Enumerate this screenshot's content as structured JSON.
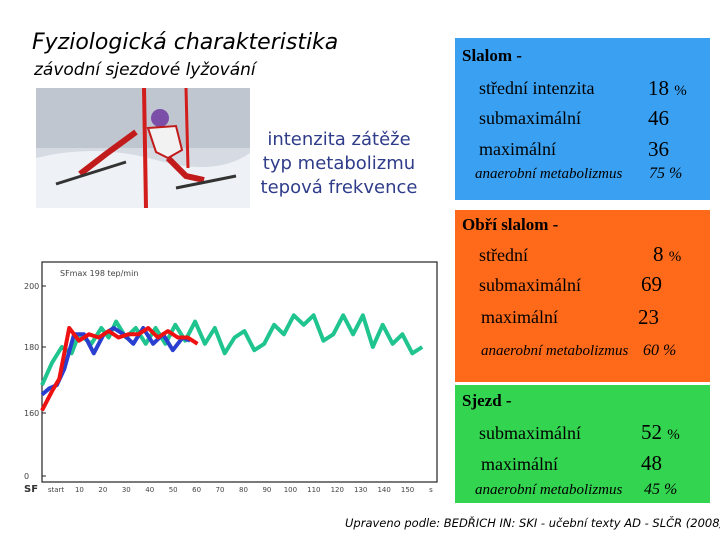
{
  "title": "Fyziologická charakteristika",
  "subtitle": "závodní sjezdové lyžování",
  "intensity_lines": [
    "intenzita zátěže",
    "typ metabolizmu",
    "tepová frekvence"
  ],
  "slalom": {
    "heading": "Slalom -",
    "rows": [
      {
        "label": "střední intenzita",
        "value": "18",
        "unit": "%"
      },
      {
        "label": "submaximální",
        "value": "46",
        "unit": ""
      },
      {
        "label": "maximální",
        "value": "36",
        "unit": ""
      }
    ],
    "anaerobic_label": "anaerobní metabolizmus",
    "anaerobic_value": "75 %"
  },
  "giant_slalom": {
    "heading": "Obří slalom -",
    "rows": [
      {
        "label": "střední",
        "value": "8",
        "unit": "%"
      },
      {
        "label": "submaximální",
        "value": "69",
        "unit": ""
      },
      {
        "label": "maximální",
        "value": "23",
        "unit": ""
      }
    ],
    "anaerobic_label": "anaerobní metabolizmus",
    "anaerobic_value": "60 %"
  },
  "downhill": {
    "heading": "Sjezd -",
    "rows": [
      {
        "label": "submaximální",
        "value": "52",
        "unit": "%"
      },
      {
        "label": "maximální",
        "value": "48",
        "unit": ""
      }
    ],
    "anaerobic_label": "anaerobní metabolizmus",
    "anaerobic_value": "45 %"
  },
  "caption": "Upraveno podle: BEDŘICH IN: SKI - učební texty AD - SLČR (2008)",
  "colors": {
    "slalom_box": "#3aa0f2",
    "giant_box": "#ff6a1a",
    "downhill_box": "#33d44f",
    "intensity_text": "#2f3c8a"
  },
  "chart_data": {
    "type": "line",
    "legend_text": "SFmax 198 tep/min",
    "ylabel": "SF",
    "yticks": [
      "200",
      "180",
      "160",
      "0"
    ],
    "xticks": [
      "start",
      "10",
      "20",
      "30",
      "40",
      "50",
      "60",
      "70",
      "80",
      "90",
      "100",
      "110",
      "120",
      "130",
      "140",
      "150",
      "s"
    ],
    "series": [
      {
        "color": "#1fc48f",
        "x": [
          0,
          4,
          8,
          12,
          15,
          20,
          24,
          27,
          30,
          34,
          38,
          42,
          46,
          50,
          54,
          58,
          62,
          66,
          70,
          74,
          78,
          82,
          86,
          90,
          94,
          98,
          102,
          106,
          110,
          114,
          118,
          122,
          126,
          130,
          134,
          138,
          142,
          146,
          150,
          154
        ],
        "y": [
          168,
          175,
          180,
          178,
          184,
          181,
          186,
          183,
          188,
          183,
          186,
          181,
          186,
          181,
          187,
          182,
          188,
          181,
          186,
          178,
          183,
          185,
          179,
          181,
          187,
          184,
          190,
          187,
          190,
          182,
          184,
          190,
          184,
          190,
          180,
          187,
          181,
          184,
          178,
          180
        ]
      },
      {
        "color": "#2a3fd0",
        "x": [
          0,
          3,
          6,
          9,
          13,
          17,
          21,
          25,
          29,
          33,
          37,
          41,
          45,
          49,
          53,
          57,
          60
        ],
        "y": [
          165,
          167,
          168,
          173,
          184,
          184,
          178,
          184,
          186,
          184,
          181,
          186,
          181,
          184,
          179,
          183,
          182
        ]
      },
      {
        "color": "#ee1111",
        "x": [
          0,
          4,
          7,
          11,
          15,
          19,
          23,
          27,
          31,
          35,
          39,
          43,
          47,
          51,
          55,
          59,
          63
        ],
        "y": [
          160,
          166,
          170,
          186,
          182,
          184,
          183,
          185,
          183,
          184,
          184,
          186,
          183,
          185,
          183,
          183,
          181
        ]
      }
    ]
  }
}
